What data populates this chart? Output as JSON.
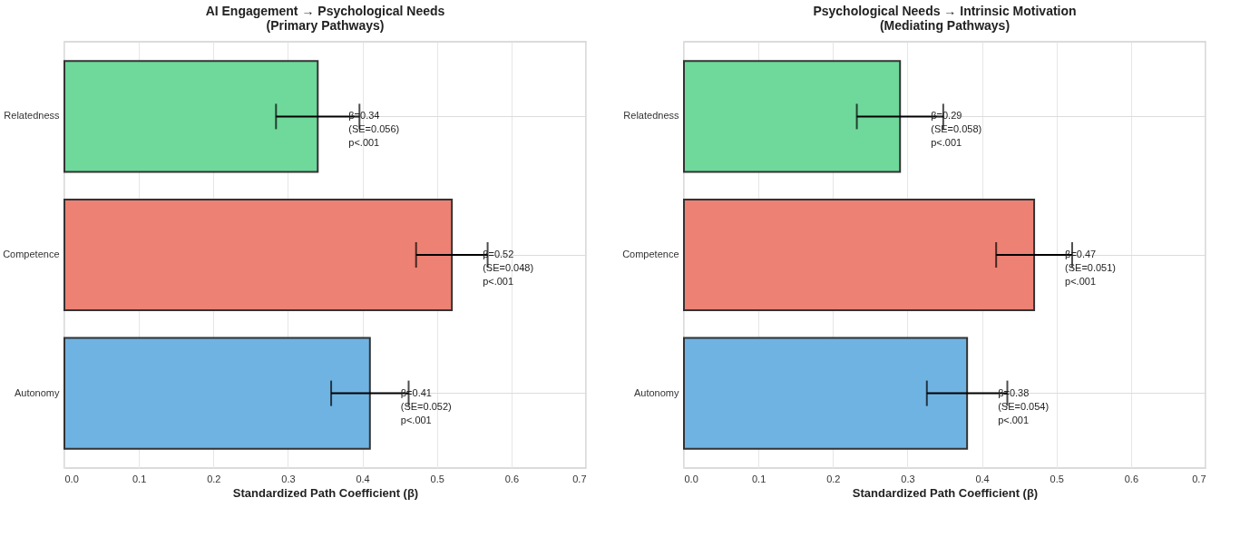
{
  "chart_data": [
    {
      "type": "bar",
      "orientation": "horizontal",
      "title": "AI Engagement → Psychological Needs\n(Primary Pathways)",
      "xlabel": "Standardized Path Coefficient (β)",
      "categories": [
        "Relatedness",
        "Competence",
        "Autonomy"
      ],
      "values": [
        0.34,
        0.52,
        0.41
      ],
      "colors": [
        "#6fd89b",
        "#ec8174",
        "#6fb3e2"
      ],
      "errors": [
        0.056,
        0.048,
        0.052
      ],
      "xlim": [
        0,
        0.7
      ],
      "xticks": [
        {
          "value": 0,
          "label": "0.0"
        },
        0.1,
        0.2,
        0.3,
        0.4,
        0.5,
        0.6,
        0.7
      ],
      "grid": true,
      "annotations": [
        "β=0.34\n(SE=0.056)\np<.001",
        "β=0.52\n(SE=0.048)\np<.001",
        "β=0.41\n(SE=0.052)\np<.001"
      ]
    },
    {
      "type": "bar",
      "orientation": "horizontal",
      "title": "Psychological Needs → Intrinsic Motivation\n(Mediating Pathways)",
      "xlabel": "Standardized Path Coefficient (β)",
      "categories": [
        "Relatedness",
        "Competence",
        "Autonomy"
      ],
      "values": [
        0.29,
        0.47,
        0.38
      ],
      "colors": [
        "#6fd89b",
        "#ec8174",
        "#6fb3e2"
      ],
      "errors": [
        0.058,
        0.051,
        0.054
      ],
      "xlim": [
        0,
        0.7
      ],
      "xticks": [
        {
          "value": 0,
          "label": "0.0"
        },
        0.1,
        0.2,
        0.3,
        0.4,
        0.5,
        0.6,
        0.7
      ],
      "grid": true,
      "annotations": [
        "β=0.29\n(SE=0.058)\np<.001",
        "β=0.47\n(SE=0.051)\np<.001",
        "β=0.38\n(SE=0.054)\np<.001"
      ]
    }
  ]
}
